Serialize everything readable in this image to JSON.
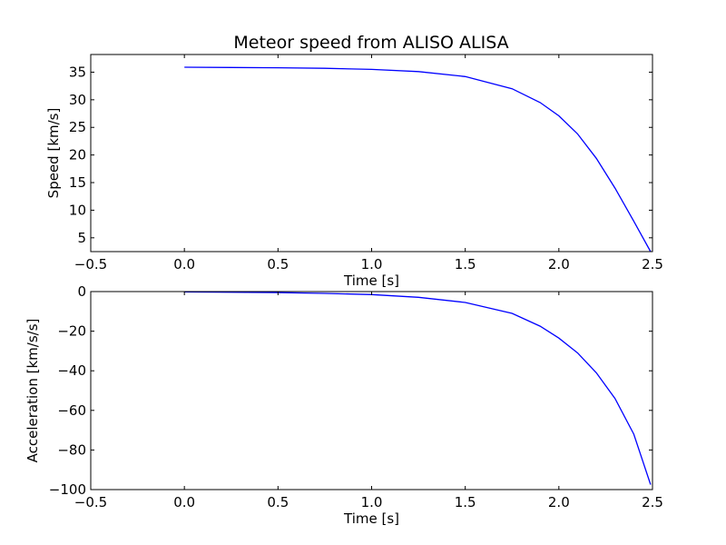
{
  "chart_data": [
    {
      "type": "line",
      "title": "Meteor speed from  ALISO ALISA",
      "xlabel": "Time [s]",
      "ylabel": "Speed [km/s]",
      "xlim": [
        -0.5,
        2.5
      ],
      "ylim": [
        2.5,
        38.2
      ],
      "x_ticks": [
        -0.5,
        0.0,
        0.5,
        1.0,
        1.5,
        2.0,
        2.5
      ],
      "x_tick_labels": [
        "−0.5",
        "0.0",
        "0.5",
        "1.0",
        "1.5",
        "2.0",
        "2.5"
      ],
      "y_ticks": [
        5,
        10,
        15,
        20,
        25,
        30,
        35
      ],
      "y_tick_labels": [
        "5",
        "10",
        "15",
        "20",
        "25",
        "30",
        "35"
      ],
      "grid": false,
      "series": [
        {
          "color": "#0000ff",
          "x": [
            0.0,
            0.25,
            0.5,
            0.75,
            1.0,
            1.25,
            1.5,
            1.75,
            1.9,
            2.0,
            2.1,
            2.2,
            2.3,
            2.4,
            2.49
          ],
          "values": [
            35.9,
            35.85,
            35.8,
            35.7,
            35.5,
            35.1,
            34.2,
            32.0,
            29.5,
            27.1,
            23.8,
            19.4,
            14.0,
            8.0,
            2.5
          ]
        }
      ]
    },
    {
      "type": "line",
      "title": "",
      "xlabel": "Time [s]",
      "ylabel": "Acceleration [km/s/s]",
      "xlim": [
        -0.5,
        2.5
      ],
      "ylim": [
        -100,
        0
      ],
      "x_ticks": [
        -0.5,
        0.0,
        0.5,
        1.0,
        1.5,
        2.0,
        2.5
      ],
      "x_tick_labels": [
        "−0.5",
        "0.0",
        "0.5",
        "1.0",
        "1.5",
        "2.0",
        "2.5"
      ],
      "y_ticks": [
        0,
        -20,
        -40,
        -60,
        -80,
        -100
      ],
      "y_tick_labels": [
        "0",
        "−20",
        "−40",
        "−60",
        "−80",
        "−100"
      ],
      "grid": false,
      "series": [
        {
          "color": "#0000ff",
          "x": [
            0.0,
            0.25,
            0.5,
            0.75,
            1.0,
            1.25,
            1.5,
            1.75,
            1.9,
            2.0,
            2.1,
            2.2,
            2.3,
            2.4,
            2.49
          ],
          "values": [
            -0.2,
            -0.3,
            -0.5,
            -0.9,
            -1.5,
            -2.9,
            -5.5,
            -11.0,
            -17.5,
            -23.5,
            -31.0,
            -41.0,
            -54.0,
            -72.0,
            -97.5
          ]
        }
      ]
    }
  ]
}
